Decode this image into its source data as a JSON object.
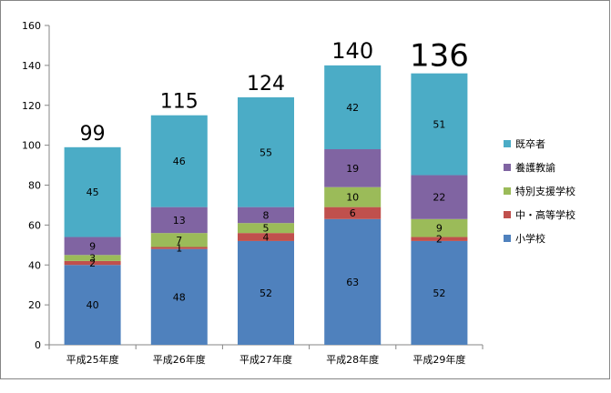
{
  "chart_data": {
    "type": "bar",
    "stacked": true,
    "categories": [
      "平成25年度",
      "平成26年度",
      "平成27年度",
      "平成28年度",
      "平成29年度"
    ],
    "series": [
      {
        "name": "小学校",
        "values": [
          40,
          48,
          52,
          63,
          52
        ],
        "color": "#4f81bd"
      },
      {
        "name": "中・高等学校",
        "values": [
          2,
          1,
          4,
          6,
          2
        ],
        "color": "#c0504d"
      },
      {
        "name": "特別支援学校",
        "values": [
          3,
          7,
          5,
          10,
          9
        ],
        "color": "#9bbb59"
      },
      {
        "name": "養護教諭",
        "values": [
          9,
          13,
          8,
          19,
          22
        ],
        "color": "#8064a2"
      },
      {
        "name": "既卒者",
        "values": [
          45,
          46,
          55,
          42,
          51
        ],
        "color": "#4bacc6"
      }
    ],
    "totals": [
      99,
      115,
      124,
      140,
      136
    ],
    "yticks": [
      0,
      20,
      40,
      60,
      80,
      100,
      120,
      140,
      160
    ],
    "ylim": [
      0,
      160
    ],
    "legend_position": "right",
    "legend_order": [
      "既卒者",
      "養護教諭",
      "特別支援学校",
      "中・高等学校",
      "小学校"
    ],
    "grid": false
  }
}
